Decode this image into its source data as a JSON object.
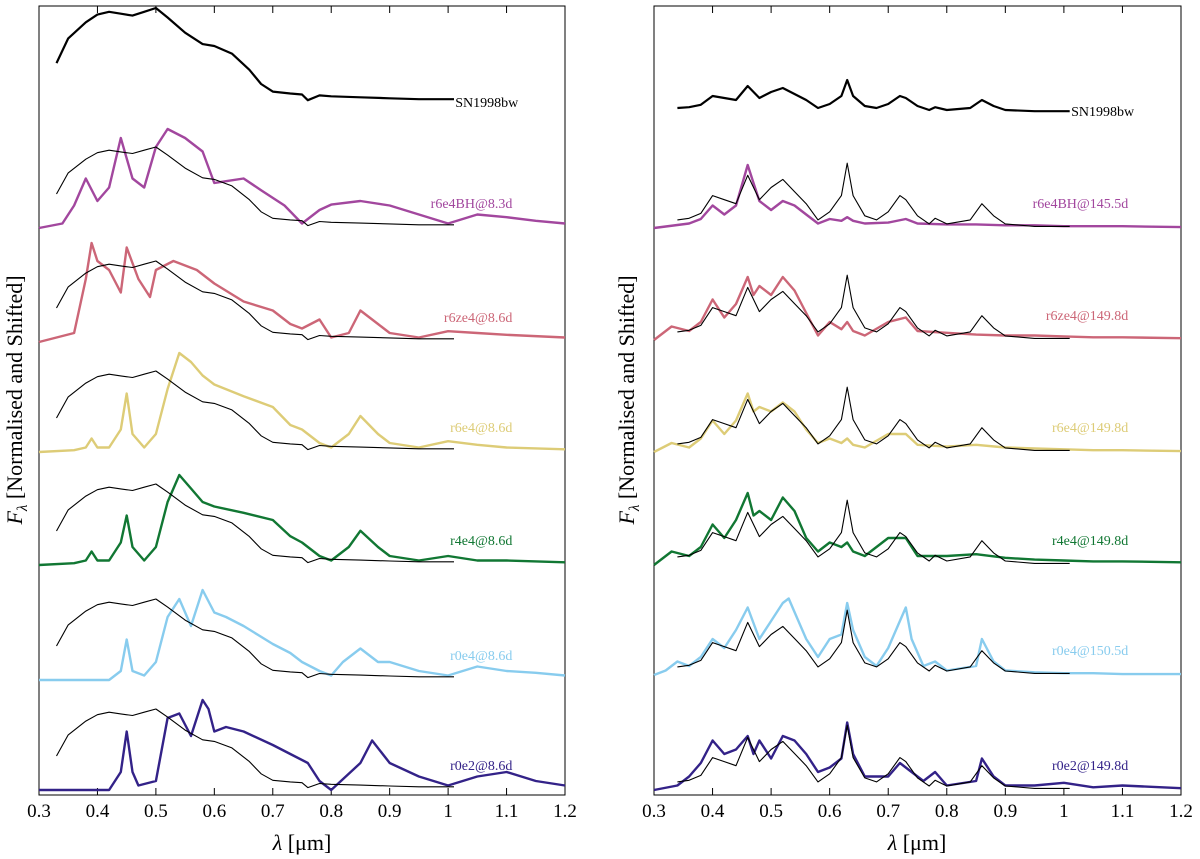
{
  "figure": {
    "ylabel_symbol": "F",
    "ylabel_sub": "λ",
    "ylabel_text": " [Normalised and Shifted]",
    "xlabel_symbol": "λ",
    "xlabel_text": " [μm]"
  },
  "chart_data": [
    {
      "type": "line",
      "title": "",
      "xlabel": "λ [μm]",
      "ylabel": "Fλ [Normalised and Shifted]",
      "xlim": [
        0.3,
        1.2
      ],
      "xticks": [
        "0.3",
        "0.4",
        "0.5",
        "0.6",
        "0.7",
        "0.8",
        "0.9",
        "1",
        "1.1",
        "1.2"
      ],
      "yticks": "none",
      "grid": false,
      "observed": {
        "name": "SN1998bw",
        "color": "#000000",
        "x": [
          0.33,
          0.35,
          0.38,
          0.4,
          0.42,
          0.44,
          0.46,
          0.48,
          0.5,
          0.52,
          0.55,
          0.58,
          0.6,
          0.63,
          0.66,
          0.68,
          0.7,
          0.73,
          0.75,
          0.76,
          0.78,
          0.8,
          0.85,
          0.9,
          0.95,
          1.01
        ],
        "y": [
          0.42,
          0.68,
          0.85,
          0.93,
          0.96,
          0.94,
          0.92,
          0.96,
          1.0,
          0.9,
          0.74,
          0.62,
          0.6,
          0.52,
          0.35,
          0.2,
          0.12,
          0.1,
          0.09,
          0.03,
          0.08,
          0.07,
          0.06,
          0.05,
          0.04,
          0.04
        ]
      },
      "models": [
        {
          "label": "r6e4BH@8.3d",
          "color": "#a2479e",
          "x": [
            0.3,
            0.34,
            0.36,
            0.38,
            0.4,
            0.42,
            0.44,
            0.46,
            0.48,
            0.5,
            0.52,
            0.55,
            0.58,
            0.6,
            0.62,
            0.65,
            0.68,
            0.72,
            0.75,
            0.78,
            0.8,
            0.85,
            0.9,
            0.95,
            1.0,
            1.05,
            1.1,
            1.15,
            1.2
          ],
          "y": [
            0.0,
            0.05,
            0.25,
            0.55,
            0.3,
            0.45,
            1.0,
            0.55,
            0.45,
            0.9,
            1.1,
            1.0,
            0.85,
            0.5,
            0.52,
            0.55,
            0.42,
            0.25,
            0.05,
            0.2,
            0.26,
            0.3,
            0.25,
            0.15,
            0.05,
            0.15,
            0.12,
            0.08,
            0.05
          ]
        },
        {
          "label": "r6ze4@8.6d",
          "color": "#cc6677",
          "x": [
            0.3,
            0.36,
            0.38,
            0.39,
            0.4,
            0.42,
            0.44,
            0.45,
            0.47,
            0.49,
            0.5,
            0.53,
            0.57,
            0.6,
            0.65,
            0.7,
            0.73,
            0.75,
            0.78,
            0.8,
            0.83,
            0.85,
            0.88,
            0.9,
            0.95,
            1.0,
            1.05,
            1.1,
            1.2
          ],
          "y": [
            0.0,
            0.1,
            0.7,
            1.1,
            0.9,
            0.8,
            0.55,
            1.05,
            0.7,
            0.5,
            0.8,
            0.9,
            0.8,
            0.65,
            0.45,
            0.35,
            0.2,
            0.15,
            0.25,
            0.05,
            0.1,
            0.35,
            0.2,
            0.1,
            0.05,
            0.12,
            0.1,
            0.08,
            0.05
          ]
        },
        {
          "label": "r6e4@8.6d",
          "color": "#ddcc77",
          "x": [
            0.3,
            0.36,
            0.38,
            0.39,
            0.4,
            0.42,
            0.44,
            0.45,
            0.46,
            0.48,
            0.5,
            0.52,
            0.54,
            0.56,
            0.58,
            0.6,
            0.65,
            0.7,
            0.73,
            0.75,
            0.78,
            0.8,
            0.83,
            0.85,
            0.88,
            0.9,
            0.95,
            1.0,
            1.05,
            1.1,
            1.2
          ],
          "y": [
            0.0,
            0.02,
            0.05,
            0.15,
            0.05,
            0.05,
            0.25,
            0.65,
            0.2,
            0.05,
            0.2,
            0.7,
            1.1,
            1.0,
            0.85,
            0.75,
            0.62,
            0.5,
            0.3,
            0.25,
            0.1,
            0.05,
            0.2,
            0.4,
            0.2,
            0.1,
            0.05,
            0.12,
            0.08,
            0.05,
            0.03
          ]
        },
        {
          "label": "r4e4@8.6d",
          "color": "#117733",
          "x": [
            0.3,
            0.36,
            0.38,
            0.39,
            0.4,
            0.42,
            0.44,
            0.45,
            0.46,
            0.48,
            0.5,
            0.52,
            0.54,
            0.56,
            0.58,
            0.6,
            0.65,
            0.7,
            0.73,
            0.75,
            0.78,
            0.8,
            0.83,
            0.85,
            0.88,
            0.9,
            0.95,
            1.0,
            1.05,
            1.1,
            1.2
          ],
          "y": [
            0.0,
            0.02,
            0.05,
            0.15,
            0.05,
            0.05,
            0.25,
            0.55,
            0.2,
            0.05,
            0.2,
            0.7,
            1.0,
            0.85,
            0.7,
            0.65,
            0.58,
            0.5,
            0.32,
            0.25,
            0.1,
            0.05,
            0.2,
            0.38,
            0.2,
            0.1,
            0.05,
            0.1,
            0.05,
            0.05,
            0.03
          ]
        },
        {
          "label": "r0e4@8.6d",
          "color": "#88ccee",
          "x": [
            0.3,
            0.42,
            0.44,
            0.45,
            0.46,
            0.48,
            0.5,
            0.52,
            0.54,
            0.56,
            0.58,
            0.6,
            0.62,
            0.65,
            0.7,
            0.73,
            0.75,
            0.78,
            0.8,
            0.82,
            0.85,
            0.88,
            0.9,
            0.95,
            1.0,
            1.05,
            1.1,
            1.15,
            1.2
          ],
          "y": [
            0.0,
            0.0,
            0.1,
            0.45,
            0.1,
            0.05,
            0.2,
            0.7,
            0.9,
            0.6,
            1.0,
            0.75,
            0.7,
            0.6,
            0.4,
            0.3,
            0.2,
            0.1,
            0.05,
            0.2,
            0.35,
            0.2,
            0.2,
            0.1,
            0.05,
            0.15,
            0.1,
            0.08,
            0.05
          ]
        },
        {
          "label": "r0e2@8.6d",
          "color": "#332288",
          "x": [
            0.3,
            0.42,
            0.44,
            0.45,
            0.46,
            0.47,
            0.5,
            0.52,
            0.54,
            0.56,
            0.58,
            0.59,
            0.6,
            0.62,
            0.65,
            0.7,
            0.73,
            0.76,
            0.78,
            0.8,
            0.85,
            0.87,
            0.9,
            0.95,
            1.0,
            1.05,
            1.1,
            1.15,
            1.2
          ],
          "y": [
            0.0,
            0.0,
            0.2,
            0.65,
            0.2,
            0.05,
            0.1,
            0.8,
            0.85,
            0.6,
            1.0,
            0.9,
            0.65,
            0.7,
            0.65,
            0.5,
            0.4,
            0.3,
            0.1,
            0.0,
            0.3,
            0.55,
            0.3,
            0.15,
            0.05,
            0.15,
            0.2,
            0.1,
            0.05
          ]
        }
      ]
    },
    {
      "type": "line",
      "title": "",
      "xlabel": "λ [μm]",
      "ylabel": "Fλ [Normalised and Shifted]",
      "xlim": [
        0.3,
        1.2
      ],
      "xticks": [
        "0.3",
        "0.4",
        "0.5",
        "0.6",
        "0.7",
        "0.8",
        "0.9",
        "1",
        "1.1",
        "1.2"
      ],
      "yticks": "none",
      "grid": false,
      "observed": {
        "name": "SN1998bw",
        "color": "#000000",
        "x": [
          0.34,
          0.36,
          0.38,
          0.4,
          0.42,
          0.44,
          0.46,
          0.48,
          0.5,
          0.52,
          0.54,
          0.56,
          0.58,
          0.6,
          0.62,
          0.63,
          0.64,
          0.66,
          0.68,
          0.7,
          0.72,
          0.73,
          0.75,
          0.77,
          0.78,
          0.8,
          0.84,
          0.86,
          0.88,
          0.9,
          0.95,
          1.01
        ],
        "y": [
          0.1,
          0.12,
          0.18,
          0.4,
          0.35,
          0.3,
          0.65,
          0.35,
          0.5,
          0.6,
          0.45,
          0.3,
          0.1,
          0.2,
          0.4,
          0.8,
          0.4,
          0.15,
          0.1,
          0.2,
          0.4,
          0.35,
          0.15,
          0.05,
          0.12,
          0.05,
          0.1,
          0.3,
          0.15,
          0.05,
          0.02,
          0.02
        ]
      },
      "models": [
        {
          "label": "r6e4BH@145.5d",
          "color": "#a2479e",
          "x": [
            0.3,
            0.36,
            0.38,
            0.4,
            0.42,
            0.44,
            0.46,
            0.47,
            0.48,
            0.5,
            0.52,
            0.54,
            0.56,
            0.58,
            0.6,
            0.62,
            0.63,
            0.64,
            0.66,
            0.7,
            0.73,
            0.75,
            0.8,
            0.85,
            0.9,
            0.95,
            1.0,
            1.05,
            1.1,
            1.2
          ],
          "y": [
            0.0,
            0.05,
            0.1,
            0.25,
            0.15,
            0.25,
            0.7,
            0.5,
            0.3,
            0.2,
            0.3,
            0.25,
            0.15,
            0.05,
            0.1,
            0.08,
            0.12,
            0.08,
            0.05,
            0.06,
            0.1,
            0.05,
            0.04,
            0.04,
            0.03,
            0.03,
            0.02,
            0.02,
            0.02,
            0.01
          ]
        },
        {
          "label": "r6ze4@149.8d",
          "color": "#cc6677",
          "x": [
            0.3,
            0.33,
            0.36,
            0.38,
            0.4,
            0.42,
            0.44,
            0.46,
            0.47,
            0.48,
            0.5,
            0.52,
            0.54,
            0.56,
            0.58,
            0.6,
            0.62,
            0.63,
            0.64,
            0.66,
            0.7,
            0.73,
            0.75,
            0.8,
            0.85,
            0.9,
            0.95,
            1.0,
            1.05,
            1.1,
            1.2
          ],
          "y": [
            0.0,
            0.15,
            0.1,
            0.2,
            0.45,
            0.25,
            0.4,
            0.7,
            0.5,
            0.6,
            0.5,
            0.7,
            0.55,
            0.3,
            0.05,
            0.2,
            0.12,
            0.2,
            0.1,
            0.05,
            0.2,
            0.25,
            0.1,
            0.08,
            0.06,
            0.05,
            0.05,
            0.04,
            0.03,
            0.03,
            0.02
          ]
        },
        {
          "label": "r6e4@149.8d",
          "color": "#ddcc77",
          "x": [
            0.3,
            0.33,
            0.36,
            0.38,
            0.4,
            0.42,
            0.44,
            0.46,
            0.47,
            0.48,
            0.5,
            0.52,
            0.54,
            0.56,
            0.58,
            0.6,
            0.62,
            0.63,
            0.64,
            0.66,
            0.7,
            0.73,
            0.75,
            0.8,
            0.85,
            0.9,
            0.95,
            1.0,
            1.05,
            1.1,
            1.2
          ],
          "y": [
            0.0,
            0.1,
            0.05,
            0.15,
            0.35,
            0.2,
            0.35,
            0.65,
            0.45,
            0.5,
            0.45,
            0.55,
            0.45,
            0.25,
            0.1,
            0.15,
            0.1,
            0.15,
            0.08,
            0.05,
            0.2,
            0.2,
            0.08,
            0.06,
            0.08,
            0.05,
            0.04,
            0.03,
            0.02,
            0.02,
            0.01
          ]
        },
        {
          "label": "r4e4@149.8d",
          "color": "#117733",
          "x": [
            0.3,
            0.33,
            0.36,
            0.38,
            0.4,
            0.42,
            0.44,
            0.46,
            0.47,
            0.48,
            0.5,
            0.52,
            0.54,
            0.56,
            0.58,
            0.6,
            0.62,
            0.63,
            0.64,
            0.66,
            0.7,
            0.73,
            0.75,
            0.8,
            0.85,
            0.9,
            0.95,
            1.0,
            1.05,
            1.1,
            1.2
          ],
          "y": [
            0.0,
            0.15,
            0.1,
            0.2,
            0.45,
            0.3,
            0.5,
            0.8,
            0.55,
            0.6,
            0.5,
            0.75,
            0.6,
            0.3,
            0.15,
            0.25,
            0.2,
            0.25,
            0.15,
            0.1,
            0.3,
            0.3,
            0.1,
            0.1,
            0.12,
            0.08,
            0.06,
            0.05,
            0.04,
            0.04,
            0.03
          ]
        },
        {
          "label": "r0e4@150.5d",
          "color": "#88ccee",
          "x": [
            0.3,
            0.32,
            0.34,
            0.36,
            0.38,
            0.4,
            0.42,
            0.44,
            0.46,
            0.48,
            0.5,
            0.52,
            0.53,
            0.54,
            0.56,
            0.58,
            0.6,
            0.62,
            0.63,
            0.64,
            0.66,
            0.68,
            0.7,
            0.72,
            0.73,
            0.74,
            0.76,
            0.78,
            0.8,
            0.85,
            0.86,
            0.88,
            0.9,
            0.95,
            1.0,
            1.05,
            1.1,
            1.2
          ],
          "y": [
            0.0,
            0.05,
            0.15,
            0.1,
            0.2,
            0.4,
            0.3,
            0.5,
            0.75,
            0.4,
            0.6,
            0.8,
            0.85,
            0.7,
            0.4,
            0.2,
            0.4,
            0.45,
            0.8,
            0.5,
            0.2,
            0.1,
            0.3,
            0.6,
            0.75,
            0.4,
            0.1,
            0.15,
            0.05,
            0.1,
            0.4,
            0.15,
            0.05,
            0.03,
            0.02,
            0.02,
            0.01,
            0.01
          ]
        },
        {
          "label": "r0e2@149.8d",
          "color": "#332288",
          "x": [
            0.3,
            0.34,
            0.36,
            0.38,
            0.4,
            0.42,
            0.44,
            0.46,
            0.47,
            0.48,
            0.5,
            0.52,
            0.54,
            0.56,
            0.58,
            0.6,
            0.62,
            0.63,
            0.64,
            0.66,
            0.7,
            0.72,
            0.74,
            0.76,
            0.78,
            0.8,
            0.85,
            0.86,
            0.88,
            0.9,
            0.95,
            1.0,
            1.05,
            1.1,
            1.2
          ],
          "y": [
            0.0,
            0.05,
            0.15,
            0.3,
            0.55,
            0.4,
            0.45,
            0.6,
            0.4,
            0.55,
            0.35,
            0.6,
            0.55,
            0.4,
            0.2,
            0.25,
            0.35,
            0.75,
            0.4,
            0.15,
            0.15,
            0.3,
            0.2,
            0.1,
            0.2,
            0.05,
            0.1,
            0.35,
            0.15,
            0.05,
            0.05,
            0.08,
            0.03,
            0.05,
            0.02
          ]
        }
      ]
    }
  ]
}
